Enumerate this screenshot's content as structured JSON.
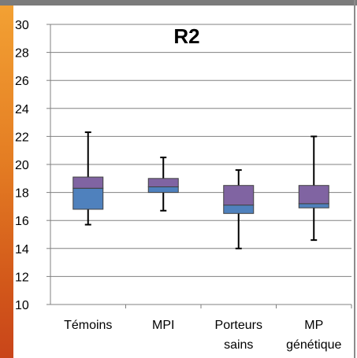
{
  "chart_data": {
    "type": "boxplot",
    "title": "R2",
    "xlabel": "",
    "ylabel": "",
    "ylim": [
      10,
      30
    ],
    "yticks": [
      10,
      12,
      14,
      16,
      18,
      20,
      22,
      24,
      26,
      28,
      30
    ],
    "grid": "horizontal",
    "categories": [
      [
        "Témoins"
      ],
      [
        "MPI"
      ],
      [
        "Porteurs",
        "sains"
      ],
      [
        "MP",
        "génétique"
      ]
    ],
    "boxes": [
      {
        "min": 15.7,
        "q1": 16.8,
        "median": 18.3,
        "q3": 19.1,
        "max": 22.3
      },
      {
        "min": 16.7,
        "q1": 18.0,
        "median": 18.4,
        "q3": 19.0,
        "max": 20.5
      },
      {
        "min": 14.0,
        "q1": 16.5,
        "median": 17.1,
        "q3": 18.5,
        "max": 19.6
      },
      {
        "min": 14.6,
        "q1": 16.9,
        "median": 17.2,
        "q3": 18.5,
        "max": 22.0
      }
    ],
    "colors": {
      "lower_box": "#4f81bd",
      "upper_box": "#8064a2",
      "box_edge": "#404040",
      "whisker": "#000000",
      "grid": "#808080",
      "stripe": "#e47d23"
    }
  }
}
